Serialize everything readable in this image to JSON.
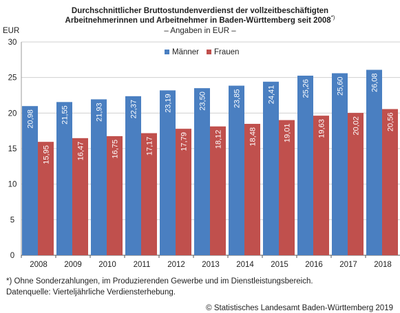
{
  "header": {
    "title_line1": "Durchschnittlicher Bruttostundenverdienst der vollzeitbeschäftigten",
    "title_line2": "Arbeitnehmerinnen und Arbeitnehmer in Baden-Württemberg seit 2008",
    "title_note": "*)",
    "subtitle": "– Angaben in EUR –",
    "unit": "EUR"
  },
  "footer": {
    "footnote": "*) Ohne Sonderzahlungen, im Produzierenden Gewerbe und im Dienstleistungsbereich.",
    "source": "Datenquelle: Vierteljährliche Verdiensterhebung.",
    "copyright": "© Statistisches Landesamt Baden-Württemberg 2019"
  },
  "chart_data": {
    "type": "bar",
    "categories": [
      "2008",
      "2009",
      "2010",
      "2011",
      "2012",
      "2013",
      "2014",
      "2015",
      "2016",
      "2017",
      "2018"
    ],
    "series": [
      {
        "name": "Männer",
        "color": "#4a7fc1",
        "values": [
          20.98,
          21.55,
          21.93,
          22.37,
          23.19,
          23.5,
          23.85,
          24.41,
          25.26,
          25.6,
          26.08
        ],
        "labels": [
          "20,98",
          "21,55",
          "21,93",
          "22,37",
          "23,19",
          "23,50",
          "23,85",
          "24,41",
          "25,26",
          "25,60",
          "26,08"
        ]
      },
      {
        "name": "Frauen",
        "color": "#c0504d",
        "values": [
          15.95,
          16.47,
          16.75,
          17.17,
          17.79,
          18.12,
          18.48,
          19.01,
          19.63,
          20.02,
          20.56
        ],
        "labels": [
          "15,95",
          "16,47",
          "16,75",
          "17,17",
          "17,79",
          "18,12",
          "18,48",
          "19,01",
          "19,63",
          "20,02",
          "20,56"
        ]
      }
    ],
    "ylim": [
      0,
      30
    ],
    "yticks": [
      0,
      5,
      10,
      15,
      20,
      25,
      30
    ],
    "grid": true,
    "legend_position": "top-right",
    "xlabel": "",
    "ylabel": "EUR"
  }
}
